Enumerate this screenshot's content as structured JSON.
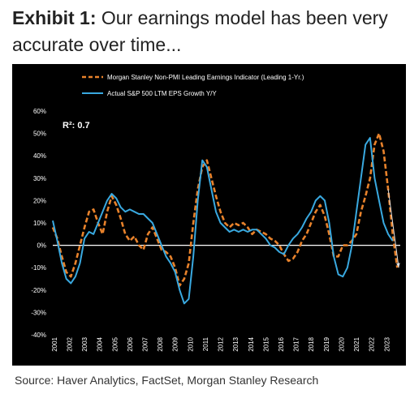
{
  "title": {
    "lead": "Exhibit 1:",
    "text": "Our earnings model has been very accurate over time..."
  },
  "source": "Source: Haver Analytics, FactSet, Morgan Stanley Research",
  "chart_data": {
    "type": "line",
    "title": "",
    "xlabel": "",
    "ylabel": "",
    "ylim": [
      -40,
      60
    ],
    "yticks": [
      60,
      50,
      40,
      30,
      20,
      10,
      0,
      -10,
      -20,
      -30,
      -40
    ],
    "ytick_labels": [
      "60%",
      "50%",
      "40%",
      "30%",
      "20%",
      "10%",
      "0%",
      "-10%",
      "-20%",
      "-30%",
      "-40%"
    ],
    "xlim": [
      2001,
      2024
    ],
    "xtick_labels": [
      "2001",
      "2002",
      "2003",
      "2004",
      "2005",
      "2006",
      "2007",
      "2008",
      "2009",
      "2010",
      "2011",
      "2012",
      "2013",
      "2014",
      "2015",
      "2016",
      "2017",
      "2018",
      "2019",
      "2020",
      "2021",
      "2022",
      "2023"
    ],
    "grid": false,
    "legend_position": "top-left",
    "annotation": "R²: 0.7",
    "colors": {
      "background": "#000000",
      "text": "#ffffff",
      "leading_indicator": "#e8822b",
      "actual": "#39a9e0",
      "zero_line": "#ffffff",
      "arrow": "#e0e0e0"
    },
    "series": [
      {
        "name": "Morgan Stanley Non-PMI Leading Earnings Indicator (Leading 1-Yr.)",
        "style": "dashed",
        "x": [
          2001.0,
          2001.3,
          2001.6,
          2001.9,
          2002.2,
          2002.5,
          2002.8,
          2003.1,
          2003.4,
          2003.7,
          2004.0,
          2004.3,
          2004.6,
          2004.9,
          2005.2,
          2005.5,
          2005.8,
          2006.1,
          2006.4,
          2006.7,
          2007.0,
          2007.3,
          2007.6,
          2007.9,
          2008.2,
          2008.5,
          2008.8,
          2009.1,
          2009.4,
          2009.7,
          2010.0,
          2010.3,
          2010.6,
          2010.9,
          2011.2,
          2011.5,
          2011.8,
          2012.1,
          2012.4,
          2012.7,
          2013.0,
          2013.3,
          2013.6,
          2013.9,
          2014.2,
          2014.5,
          2014.8,
          2015.1,
          2015.4,
          2015.7,
          2016.0,
          2016.3,
          2016.6,
          2016.9,
          2017.2,
          2017.5,
          2017.8,
          2018.1,
          2018.4,
          2018.7,
          2019.0,
          2019.3,
          2019.6,
          2019.9,
          2020.2,
          2020.5,
          2020.8,
          2021.1,
          2021.4,
          2021.7,
          2022.0,
          2022.3,
          2022.6,
          2022.9,
          2023.2,
          2023.5,
          2023.8
        ],
        "y": [
          8,
          3,
          -5,
          -12,
          -14,
          -8,
          0,
          8,
          15,
          16,
          10,
          5,
          15,
          22,
          18,
          12,
          5,
          2,
          4,
          0,
          -2,
          5,
          8,
          3,
          -2,
          -3,
          -5,
          -10,
          -18,
          -15,
          -8,
          10,
          25,
          35,
          38,
          30,
          22,
          15,
          10,
          8,
          10,
          9,
          10,
          8,
          5,
          7,
          6,
          5,
          3,
          2,
          0,
          -4,
          -7,
          -6,
          -3,
          2,
          5,
          10,
          15,
          18,
          13,
          5,
          -5,
          -5,
          0,
          0,
          2,
          5,
          15,
          22,
          30,
          45,
          50,
          42,
          25,
          5,
          -10
        ]
      },
      {
        "name": "Actual S&P 500 LTM EPS Growth Y/Y",
        "style": "solid",
        "x": [
          2001.0,
          2001.3,
          2001.6,
          2001.9,
          2002.2,
          2002.5,
          2002.8,
          2003.1,
          2003.4,
          2003.7,
          2004.0,
          2004.3,
          2004.6,
          2004.9,
          2005.2,
          2005.5,
          2005.8,
          2006.1,
          2006.4,
          2006.7,
          2007.0,
          2007.3,
          2007.6,
          2007.9,
          2008.2,
          2008.5,
          2008.8,
          2009.1,
          2009.4,
          2009.7,
          2010.0,
          2010.3,
          2010.6,
          2010.9,
          2011.2,
          2011.5,
          2011.8,
          2012.1,
          2012.4,
          2012.7,
          2013.0,
          2013.3,
          2013.6,
          2013.9,
          2014.2,
          2014.5,
          2014.8,
          2015.1,
          2015.4,
          2015.7,
          2016.0,
          2016.3,
          2016.6,
          2016.9,
          2017.2,
          2017.5,
          2017.8,
          2018.1,
          2018.4,
          2018.7,
          2019.0,
          2019.3,
          2019.6,
          2019.9,
          2020.2,
          2020.5,
          2020.8,
          2021.1,
          2021.4,
          2021.7,
          2022.0,
          2022.3,
          2022.6,
          2022.9,
          2023.2,
          2023.5
        ],
        "y": [
          11,
          2,
          -8,
          -15,
          -17,
          -14,
          -8,
          3,
          6,
          5,
          10,
          15,
          20,
          23,
          21,
          17,
          15,
          16,
          15,
          14,
          14,
          12,
          10,
          5,
          0,
          -5,
          -8,
          -12,
          -20,
          -26,
          -24,
          -5,
          20,
          38,
          35,
          25,
          15,
          10,
          8,
          6,
          7,
          6,
          7,
          6,
          7,
          7,
          5,
          3,
          0,
          -1,
          -3,
          -4,
          0,
          3,
          5,
          8,
          12,
          15,
          20,
          22,
          20,
          10,
          -5,
          -13,
          -14,
          -10,
          0,
          15,
          30,
          45,
          48,
          30,
          20,
          10,
          5,
          2
        ]
      }
    ],
    "trend_arrow": {
      "x": [
        2023.2,
        2023.9
      ],
      "y": [
        25,
        -10
      ]
    }
  }
}
